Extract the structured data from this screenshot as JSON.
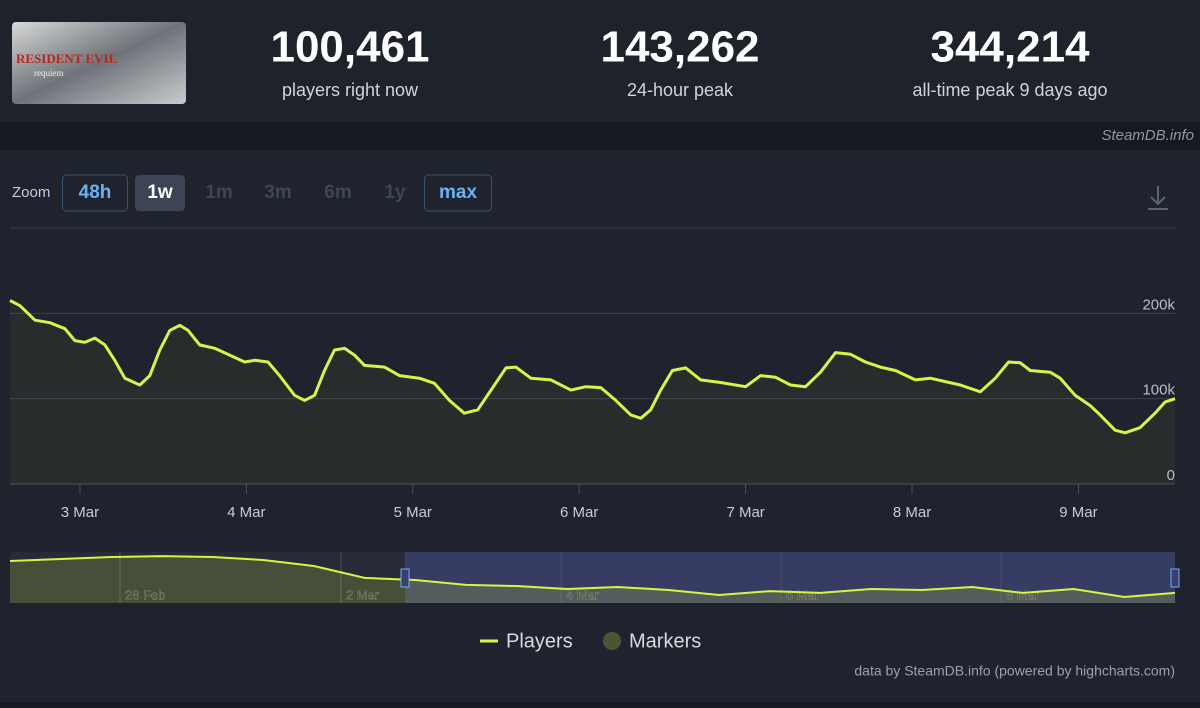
{
  "header": {
    "logo_title": "RESIDENT EVIL",
    "logo_subtitle": "requiem",
    "stats": [
      {
        "value": "100,461",
        "label": "players right now"
      },
      {
        "value": "143,262",
        "label": "24-hour peak"
      },
      {
        "value": "344,214",
        "label": "all-time peak 9 days ago"
      }
    ],
    "source": "SteamDB.info"
  },
  "zoom": {
    "label": "Zoom",
    "buttons": [
      {
        "text": "48h",
        "state": "selectable"
      },
      {
        "text": "1w",
        "state": "selected"
      },
      {
        "text": "1m",
        "state": "disabled"
      },
      {
        "text": "3m",
        "state": "disabled"
      },
      {
        "text": "6m",
        "state": "disabled"
      },
      {
        "text": "1y",
        "state": "disabled"
      },
      {
        "text": "max",
        "state": "selectable"
      }
    ]
  },
  "chart_data": {
    "type": "line",
    "x": [
      2.58,
      2.64,
      2.73,
      2.82,
      2.91,
      2.97,
      3.03,
      3.09,
      3.15,
      3.21,
      3.27,
      3.36,
      3.42,
      3.48,
      3.54,
      3.6,
      3.65,
      3.72,
      3.81,
      3.9,
      3.99,
      4.05,
      4.13,
      4.2,
      4.29,
      4.35,
      4.41,
      4.47,
      4.53,
      4.59,
      4.65,
      4.71,
      4.83,
      4.92,
      5.04,
      5.13,
      5.22,
      5.31,
      5.39,
      5.47,
      5.56,
      5.62,
      5.71,
      5.83,
      5.95,
      6.04,
      6.13,
      6.22,
      6.31,
      6.37,
      6.43,
      6.49,
      6.56,
      6.64,
      6.73,
      6.85,
      7.0,
      7.09,
      7.18,
      7.27,
      7.36,
      7.45,
      7.54,
      7.63,
      7.72,
      7.81,
      7.9,
      8.02,
      8.11,
      8.2,
      8.29,
      8.41,
      8.5,
      8.58,
      8.65,
      8.71,
      8.83,
      8.89,
      8.98,
      9.07,
      9.13,
      9.22,
      9.28,
      9.37,
      9.46,
      9.52,
      9.58
    ],
    "series": [
      {
        "name": "Players",
        "color": "#d7f542",
        "values": [
          215000,
          209000,
          192000,
          189000,
          182000,
          168000,
          166000,
          171000,
          163000,
          145000,
          124000,
          116000,
          127000,
          157000,
          180000,
          186000,
          180000,
          163000,
          159000,
          151000,
          143000,
          145000,
          143000,
          127000,
          104000,
          98000,
          104000,
          133000,
          157000,
          159000,
          151000,
          139000,
          137000,
          127000,
          124000,
          118000,
          98000,
          83000,
          87000,
          110000,
          136000,
          137000,
          124000,
          122000,
          110000,
          114000,
          113000,
          98000,
          81000,
          77000,
          87000,
          110000,
          133000,
          136000,
          122000,
          119000,
          114000,
          127000,
          125000,
          116000,
          114000,
          131000,
          154000,
          152000,
          143000,
          137000,
          133000,
          122000,
          124000,
          120000,
          116000,
          108000,
          124000,
          143000,
          142000,
          133000,
          131000,
          124000,
          104000,
          92000,
          81000,
          63000,
          60000,
          66000,
          83000,
          96000,
          100000
        ]
      }
    ],
    "legend_items": [
      {
        "name": "Markers",
        "color": "#4b5530"
      }
    ],
    "xlim": [
      2.58,
      9.58
    ],
    "xticks": [
      {
        "value": 3,
        "label": "3 Mar"
      },
      {
        "value": 4,
        "label": "4 Mar"
      },
      {
        "value": 5,
        "label": "5 Mar"
      },
      {
        "value": 6,
        "label": "6 Mar"
      },
      {
        "value": 7,
        "label": "7 Mar"
      },
      {
        "value": 8,
        "label": "8 Mar"
      },
      {
        "value": 9,
        "label": "9 Mar"
      }
    ],
    "ylim": [
      0,
      300000
    ],
    "yticks": [
      {
        "value": 0,
        "label": "0"
      },
      {
        "value": 100000,
        "label": "100k"
      },
      {
        "value": 200000,
        "label": "200k"
      }
    ],
    "grid": true
  },
  "navigator": {
    "values": [
      288000,
      302000,
      316000,
      322000,
      316000,
      295000,
      254000,
      172000,
      158000,
      124000,
      117000,
      96000,
      110000,
      89000,
      55000,
      82000,
      69000,
      96000,
      89000,
      110000,
      69000,
      96000,
      41000,
      69000
    ],
    "ylim": [
      0,
      350000
    ],
    "labels": [
      "28 Feb",
      "2 Mar",
      "4 Mar",
      "6 Mar",
      "8 Mar"
    ]
  },
  "credits": "data by SteamDB.info (powered by highcharts.com)"
}
